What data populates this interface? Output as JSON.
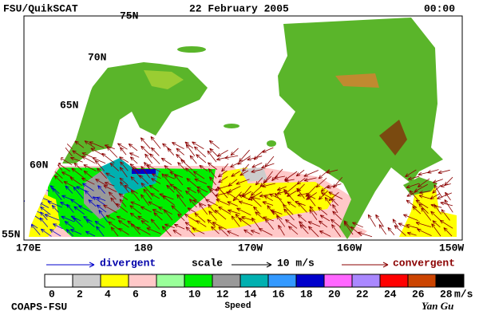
{
  "header": {
    "left": "FSU/QuikSCAT",
    "date": "22 February 2005",
    "time": "00:00"
  },
  "map": {
    "lat_labels": [
      "75N",
      "70N",
      "65N",
      "60N",
      "55N"
    ],
    "lon_labels": [
      "170E",
      "180",
      "170W",
      "160W",
      "150W"
    ]
  },
  "legend": {
    "divergent": "divergent",
    "scale": "scale",
    "scale_value": "10 m/s",
    "convergent": "convergent"
  },
  "colorbar": {
    "colors": [
      "#ffffff",
      "#cccccc",
      "#ffff00",
      "#ffc8c8",
      "#99ff99",
      "#00ee00",
      "#999999",
      "#00b0b0",
      "#3399ff",
      "#0000cc",
      "#ff66ff",
      "#aa88ff",
      "#ff0000",
      "#cc4400",
      "#000000"
    ],
    "labels": [
      "0",
      "2",
      "4",
      "6",
      "8",
      "10",
      "12",
      "14",
      "16",
      "18",
      "20",
      "22",
      "24",
      "26",
      "28"
    ],
    "unit": "m/s",
    "title": "Speed"
  },
  "footer": {
    "left": "COAPS-FSU",
    "right": "Yan Gu"
  }
}
